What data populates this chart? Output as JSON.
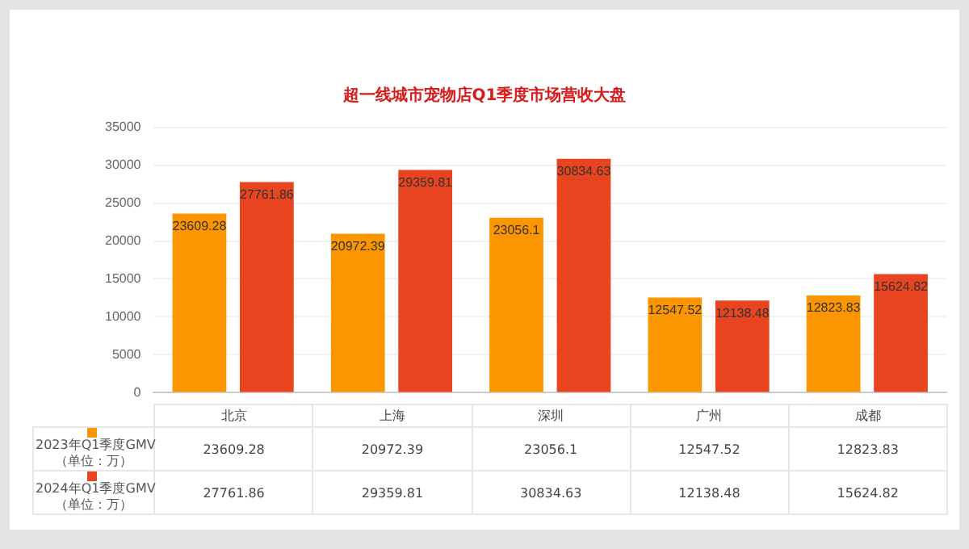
{
  "chart_data": {
    "type": "bar",
    "title": "超一线城市宠物店Q1季度市场营收大盘",
    "categories": [
      "北京",
      "上海",
      "深圳",
      "广州",
      "成都"
    ],
    "series": [
      {
        "name": "2023年Q1季度GMV（单位：万）",
        "color": "#fb9600",
        "values": [
          23609.28,
          20972.39,
          23056.1,
          12547.52,
          12823.83
        ],
        "value_labels": [
          "23609.28",
          "20972.39",
          "23056.1",
          "12547.52",
          "12823.83"
        ]
      },
      {
        "name": "2024年Q1季度GMV（单位：万）",
        "color": "#e8441f",
        "values": [
          27761.86,
          29359.81,
          30834.63,
          12138.48,
          15624.82
        ],
        "value_labels": [
          "27761.86",
          "29359.81",
          "30834.63",
          "12138.48",
          "15624.82"
        ]
      }
    ],
    "ylim": [
      0,
      35000
    ],
    "yticks": [
      0,
      5000,
      10000,
      15000,
      20000,
      25000,
      30000,
      35000
    ],
    "annotations": [
      "23609.28",
      "20972.39",
      "23056.1",
      "12547.52",
      "12823.83",
      "27761.86",
      "29359.81",
      "30834.63",
      "12138.48",
      "15624.82"
    ],
    "grid": "y",
    "legend": "bottom left"
  }
}
